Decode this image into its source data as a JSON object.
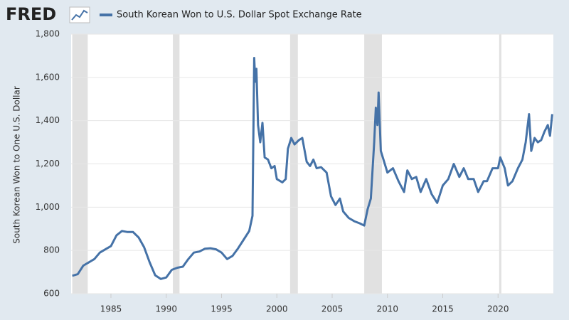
{
  "chart_data": {
    "type": "line",
    "logo": "FRED",
    "y_label": "South Korean Won to One U.S. Dollar",
    "x": [
      1981.5,
      1982.0,
      1982.5,
      1983.0,
      1983.5,
      1984.0,
      1984.5,
      1985.0,
      1985.5,
      1986.0,
      1986.5,
      1987.0,
      1987.5,
      1988.0,
      1988.5,
      1989.0,
      1989.5,
      1990.0,
      1990.5,
      1991.0,
      1991.5,
      1992.0,
      1992.5,
      1993.0,
      1993.5,
      1994.0,
      1994.5,
      1995.0,
      1995.5,
      1996.0,
      1996.5,
      1997.0,
      1997.5,
      1997.8,
      1997.95,
      1998.05,
      1998.15,
      1998.3,
      1998.5,
      1998.7,
      1998.9,
      1999.2,
      1999.5,
      1999.8,
      2000.0,
      2000.5,
      2000.8,
      2001.0,
      2001.3,
      2001.6,
      2002.0,
      2002.3,
      2002.7,
      2003.0,
      2003.3,
      2003.6,
      2004.0,
      2004.5,
      2004.9,
      2005.3,
      2005.7,
      2006.0,
      2006.5,
      2007.0,
      2007.5,
      2007.9,
      2008.2,
      2008.5,
      2008.8,
      2008.95,
      2009.1,
      2009.2,
      2009.4,
      2009.7,
      2010.0,
      2010.5,
      2011.0,
      2011.5,
      2011.8,
      2012.2,
      2012.6,
      2013.0,
      2013.5,
      2014.0,
      2014.5,
      2015.0,
      2015.5,
      2016.0,
      2016.5,
      2016.9,
      2017.3,
      2017.8,
      2018.2,
      2018.7,
      2019.0,
      2019.5,
      2020.0,
      2020.2,
      2020.6,
      2020.9,
      2021.3,
      2021.8,
      2022.2,
      2022.5,
      2022.8,
      2023.0,
      2023.3,
      2023.6,
      2023.9,
      2024.2,
      2024.5,
      2024.7,
      2024.9
    ],
    "series": [
      {
        "name": "South Korean Won to U.S. Dollar Spot Exchange Rate",
        "color": "#4572a7",
        "values": [
          683,
          690,
          730,
          745,
          760,
          790,
          805,
          820,
          870,
          890,
          885,
          885,
          860,
          815,
          745,
          685,
          668,
          675,
          710,
          720,
          725,
          760,
          790,
          795,
          808,
          810,
          805,
          790,
          760,
          775,
          810,
          850,
          890,
          960,
          1690,
          1580,
          1640,
          1380,
          1300,
          1390,
          1230,
          1220,
          1180,
          1190,
          1130,
          1115,
          1130,
          1270,
          1320,
          1290,
          1310,
          1320,
          1210,
          1190,
          1220,
          1180,
          1185,
          1160,
          1050,
          1010,
          1040,
          980,
          950,
          935,
          925,
          915,
          990,
          1040,
          1300,
          1460,
          1380,
          1530,
          1260,
          1210,
          1160,
          1180,
          1120,
          1070,
          1170,
          1130,
          1140,
          1070,
          1130,
          1060,
          1020,
          1100,
          1130,
          1200,
          1140,
          1180,
          1130,
          1130,
          1070,
          1120,
          1120,
          1180,
          1180,
          1230,
          1180,
          1100,
          1120,
          1180,
          1220,
          1300,
          1430,
          1260,
          1320,
          1300,
          1310,
          1350,
          1380,
          1330,
          1430
        ]
      }
    ],
    "recessions": [
      [
        1981.5,
        1982.9
      ],
      [
        1990.6,
        1991.2
      ],
      [
        2001.2,
        2001.9
      ],
      [
        2007.9,
        2009.5
      ],
      [
        2020.1,
        2020.3
      ]
    ],
    "xlim": [
      1981.4,
      2025.0
    ],
    "xticks": [
      1985,
      1990,
      1995,
      2000,
      2005,
      2010,
      2015,
      2020
    ],
    "ylim": [
      600,
      1800
    ],
    "yticks": [
      600,
      800,
      {
        "value": 1000,
        "label": "1,000"
      },
      {
        "value": 1200,
        "label": "1,200"
      },
      {
        "value": 1400,
        "label": "1,400"
      },
      {
        "value": 1600,
        "label": "1,600"
      },
      {
        "value": 1800,
        "label": "1,800"
      }
    ],
    "grid": true
  }
}
